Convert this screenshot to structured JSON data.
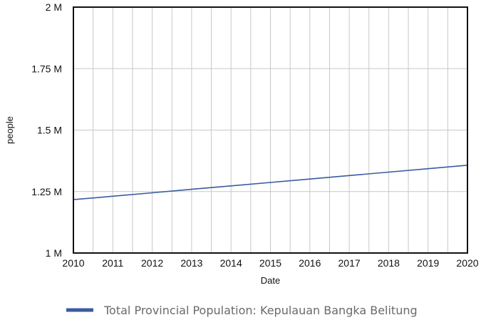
{
  "chart_data": {
    "type": "line",
    "title": "",
    "xlabel": "Date",
    "ylabel": "people",
    "xlim": [
      2010,
      2020
    ],
    "ylim": [
      1000000,
      2000000
    ],
    "x_ticks": [
      "2010",
      "2011",
      "2012",
      "2013",
      "2014",
      "2015",
      "2016",
      "2017",
      "2018",
      "2019",
      "2020"
    ],
    "y_ticks": [
      {
        "value": 1000000,
        "label": "1 M"
      },
      {
        "value": 1250000,
        "label": "1.25 M"
      },
      {
        "value": 1500000,
        "label": "1.5 M"
      },
      {
        "value": 1750000,
        "label": "1.75 M"
      },
      {
        "value": 2000000,
        "label": "2 M"
      }
    ],
    "grid": true,
    "legend_position": "bottom",
    "series": [
      {
        "name": "Total Provincial Population: Kepulauan Bangka Belitung",
        "color": "#3b5aa0",
        "x": [
          2010,
          2011,
          2012,
          2013,
          2014,
          2015,
          2016,
          2017,
          2018,
          2019,
          2020
        ],
        "y": [
          1217000,
          1231000,
          1245000,
          1259000,
          1273000,
          1287000,
          1301000,
          1315000,
          1329000,
          1343000,
          1357000
        ]
      }
    ]
  }
}
